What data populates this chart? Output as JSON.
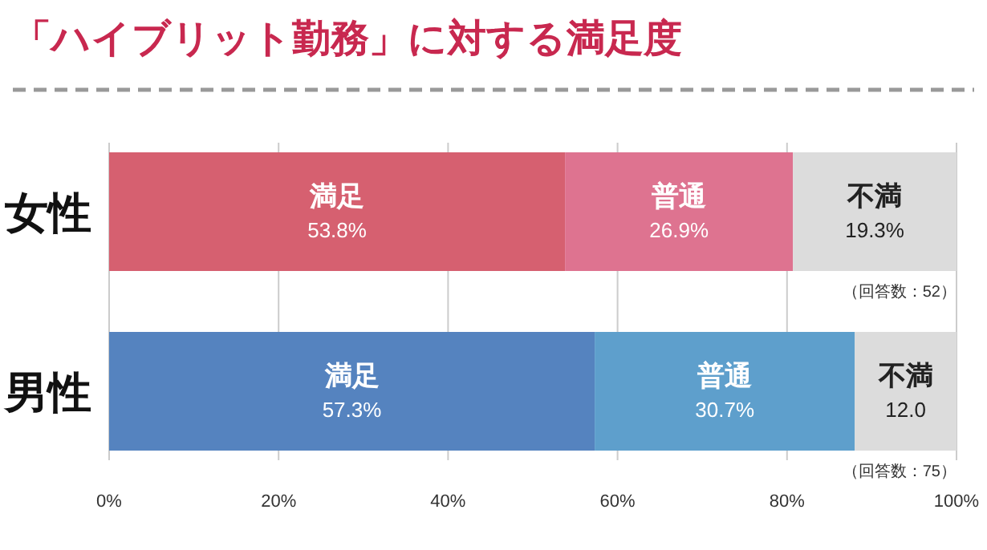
{
  "chart_data": {
    "type": "bar",
    "orientation": "horizontal",
    "stacked": true,
    "title": "「ハイブリット勤務」に対する満足度",
    "categories": [
      "女性",
      "男性"
    ],
    "series": [
      {
        "name": "満足",
        "colors": [
          "#d66070",
          "#5583bf"
        ],
        "values": [
          53.8,
          57.3
        ],
        "value_labels": [
          "53.8%",
          "57.3%"
        ]
      },
      {
        "name": "普通",
        "colors": [
          "#de7390",
          "#5e9fcc"
        ],
        "values": [
          26.9,
          30.7
        ],
        "value_labels": [
          "26.9%",
          "30.7%"
        ]
      },
      {
        "name": "不満",
        "colors": [
          "#dcdcdc",
          "#dcdcdc"
        ],
        "values": [
          19.3,
          12.0
        ],
        "value_labels": [
          "19.3%",
          "12.0"
        ]
      }
    ],
    "xlim": [
      0,
      100
    ],
    "xticks": [
      {
        "value": 0,
        "label": "0%"
      },
      {
        "value": 20,
        "label": "20%"
      },
      {
        "value": 40,
        "label": "40%"
      },
      {
        "value": 60,
        "label": "60%"
      },
      {
        "value": 80,
        "label": "80%"
      },
      {
        "value": 100,
        "label": "100%"
      }
    ],
    "grid": "x",
    "annotations": [
      "（回答数：52）",
      "（回答数：75）"
    ]
  }
}
